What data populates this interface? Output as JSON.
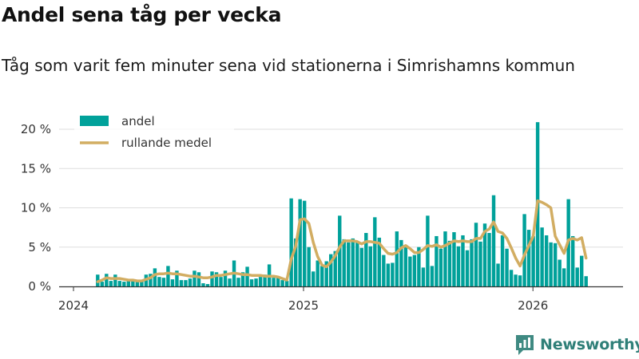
{
  "header": {
    "title": "Andel sena tåg per vecka",
    "subtitle": "Tåg som varit fem minuter sena vid stationerna i Simrishamns kommun"
  },
  "brand": {
    "name": "Newsworthy",
    "logo_icon": "newsworthy-logo-icon"
  },
  "colors": {
    "bar": "#00a19a",
    "line": "#d2ad62",
    "grid": "#dddddd",
    "text": "#333333"
  },
  "chart_data": {
    "type": "bar",
    "title": "Andel sena tåg per vecka",
    "subtitle": "Tåg som varit fem minuter sena vid stationerna i Simrishamns kommun",
    "xlabel": "",
    "ylabel": "",
    "ylim": [
      0,
      22
    ],
    "yticks": [
      0,
      5,
      10,
      15,
      20
    ],
    "ytick_labels": [
      "0 %",
      "5 %",
      "10 %",
      "15 %",
      "20 %"
    ],
    "x_start": "2024-01-01",
    "xticks": [
      "2024-01-01",
      "2025-01-01",
      "2026-01-01"
    ],
    "xtick_labels": [
      "2024",
      "2025",
      "2026"
    ],
    "grid": true,
    "legend_position": "top-left",
    "series": [
      {
        "name": "andel",
        "type": "bar",
        "values": [
          0,
          0,
          0,
          0,
          0,
          1.5,
          0.6,
          1.6,
          0.7,
          1.5,
          0.7,
          0.6,
          0.8,
          0.7,
          0.6,
          0.8,
          1.5,
          1.6,
          2.3,
          1.2,
          1.1,
          2.6,
          0.9,
          2.0,
          0.8,
          0.8,
          1.0,
          2.0,
          1.8,
          0.4,
          0.3,
          1.9,
          1.8,
          1.2,
          2.0,
          1.0,
          3.3,
          1.1,
          1.8,
          2.5,
          0.9,
          1.0,
          1.2,
          1.5,
          2.8,
          1.1,
          1.2,
          0.8,
          0.7,
          11.2,
          6.1,
          11.1,
          10.9,
          5.0,
          1.9,
          3.3,
          2.6,
          3.2,
          4.1,
          4.5,
          9.0,
          6.0,
          5.6,
          6.1,
          5.7,
          4.9,
          6.8,
          5.1,
          8.8,
          6.2,
          4.0,
          2.9,
          3.0,
          7.0,
          5.9,
          5.0,
          3.8,
          4.0,
          5.0,
          2.4,
          9.0,
          2.6,
          6.4,
          4.8,
          7.0,
          5.8,
          6.9,
          5.1,
          6.5,
          4.6,
          6.0,
          8.1,
          5.7,
          8.0,
          6.8,
          11.6,
          2.9,
          6.5,
          4.8,
          2.1,
          1.5,
          1.4,
          9.2,
          7.2,
          6.4,
          20.9,
          7.5,
          6.5,
          5.6,
          5.5,
          3.4,
          2.3,
          11.1,
          6.4,
          2.4,
          3.9,
          1.3
        ]
      },
      {
        "name": "rullande medel",
        "type": "line",
        "values": [
          null,
          null,
          null,
          null,
          null,
          0.6,
          0.8,
          1.1,
          1.0,
          1.0,
          1.0,
          0.9,
          0.8,
          0.8,
          0.7,
          0.7,
          0.9,
          1.1,
          1.5,
          1.6,
          1.6,
          1.7,
          1.6,
          1.6,
          1.5,
          1.4,
          1.3,
          1.3,
          1.2,
          1.1,
          1.1,
          1.2,
          1.4,
          1.4,
          1.5,
          1.6,
          1.7,
          1.6,
          1.5,
          1.5,
          1.4,
          1.4,
          1.4,
          1.3,
          1.3,
          1.3,
          1.2,
          1.0,
          0.8,
          3.5,
          5.1,
          8.5,
          8.6,
          8.0,
          5.6,
          3.8,
          2.7,
          2.5,
          3.1,
          3.9,
          5.0,
          5.8,
          5.8,
          5.8,
          5.7,
          5.4,
          5.7,
          5.7,
          5.6,
          5.5,
          4.8,
          4.2,
          4.1,
          4.3,
          4.9,
          5.2,
          4.8,
          4.3,
          4.3,
          4.7,
          5.2,
          5.1,
          5.3,
          5.0,
          5.2,
          5.5,
          5.8,
          5.7,
          5.8,
          5.7,
          5.7,
          6.1,
          6.1,
          7.0,
          7.3,
          8.2,
          7.0,
          6.8,
          6.1,
          4.9,
          3.6,
          2.6,
          4.0,
          5.2,
          6.4,
          10.9,
          10.7,
          10.4,
          10.0,
          6.4,
          5.3,
          4.2,
          5.9,
          6.1,
          5.9,
          6.2,
          3.6
        ]
      }
    ]
  }
}
